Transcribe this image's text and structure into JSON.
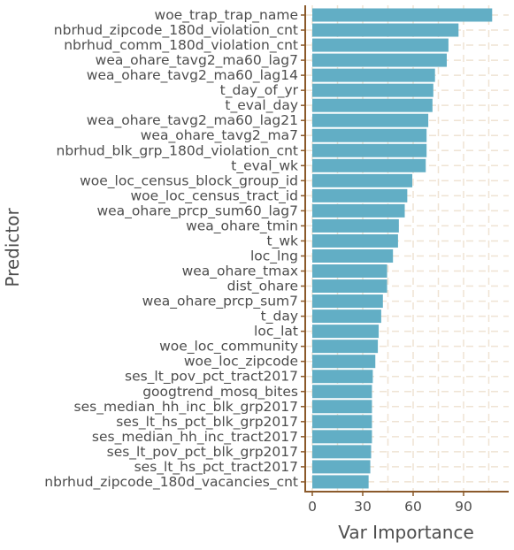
{
  "chart_data": {
    "type": "bar",
    "orientation": "horizontal",
    "xlabel": "Var Importance",
    "ylabel": "Predictor",
    "xlim": [
      0,
      110
    ],
    "xticks": [
      0,
      30,
      60,
      90
    ],
    "grid": true,
    "colors": {
      "bar": "#62aec5",
      "axis": "#8b5a2b",
      "grid": "#efe3d3",
      "text": "#4d4d4d"
    },
    "categories": [
      "woe_trap_trap_name",
      "nbrhud_zipcode_180d_violation_cnt",
      "nbrhud_comm_180d_violation_cnt",
      "wea_ohare_tavg2_ma60_lag7",
      "wea_ohare_tavg2_ma60_lag14",
      "t_day_of_yr",
      "t_eval_day",
      "wea_ohare_tavg2_ma60_lag21",
      "wea_ohare_tavg2_ma7",
      "nbrhud_blk_grp_180d_violation_cnt",
      "t_eval_wk",
      "woe_loc_census_block_group_id",
      "woe_loc_census_tract_id",
      "wea_ohare_prcp_sum60_lag7",
      "wea_ohare_tmin",
      "t_wk",
      "loc_lng",
      "wea_ohare_tmax",
      "dist_ohare",
      "wea_ohare_prcp_sum7",
      "t_day",
      "loc_lat",
      "woe_loc_community",
      "woe_loc_zipcode",
      "ses_lt_pov_pct_tract2017",
      "googtrend_mosq_bites",
      "ses_median_hh_inc_blk_grp2017",
      "ses_lt_hs_pct_blk_grp2017",
      "ses_median_hh_inc_tract2017",
      "ses_lt_pov_pct_blk_grp2017",
      "ses_lt_hs_pct_tract2017",
      "nbrhud_zipcode_180d_vacancies_cnt"
    ],
    "values": [
      107,
      87,
      81,
      80,
      73,
      72,
      71.5,
      69,
      68,
      68,
      67.5,
      59.5,
      56.5,
      55,
      51.5,
      51,
      48,
      44.5,
      44.5,
      42,
      41,
      39.5,
      39,
      37.5,
      36,
      35.5,
      35.5,
      35.5,
      35.5,
      35,
      34.5,
      33.5
    ]
  }
}
